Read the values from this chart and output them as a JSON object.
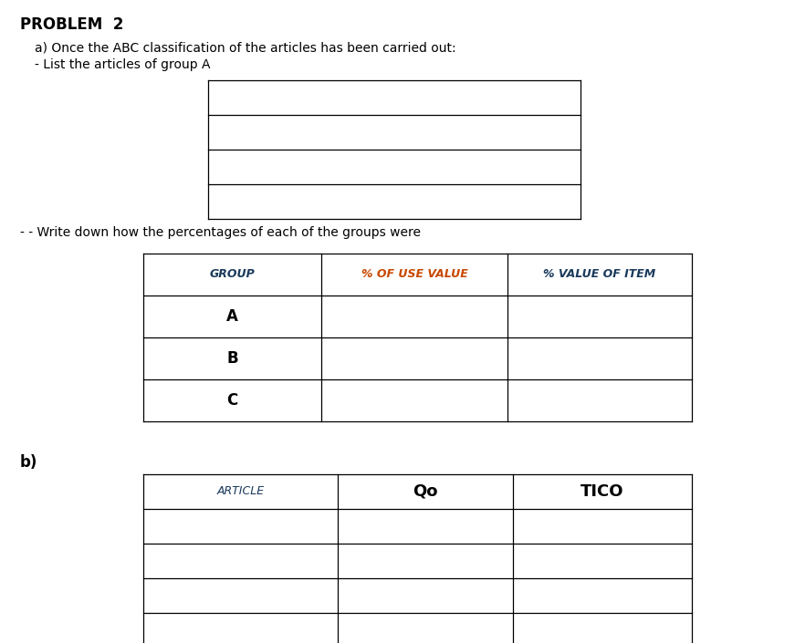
{
  "title": "PROBLEM  2",
  "text_a": "a) Once the ABC classification of the articles has been carried out:",
  "text_a2": "- List the articles of group A",
  "text_b_intro": "- - Write down how the percentages of each of the groups were",
  "text_b_label": "b)",
  "table1_header": [
    "GROUP",
    "% OF USE VALUE",
    "% VALUE OF ITEM"
  ],
  "table1_rows": [
    "A",
    "B",
    "C"
  ],
  "table2_header": [
    "ARTICLE",
    "Qo",
    "TICO"
  ],
  "table2_rows": 4,
  "bg_color": "#ffffff",
  "header1_color_group": "#1a3a5c",
  "header1_color_pct_use": "#c84800",
  "header1_color_pct_val": "#1a3a5c",
  "header2_color_article": "#1a3a5c",
  "header2_color_qo": "#000000",
  "header2_color_tico": "#000000",
  "title_fontsize": 12,
  "text_fontsize": 10,
  "table_header_fontsize": 9,
  "table_row_fontsize": 11
}
